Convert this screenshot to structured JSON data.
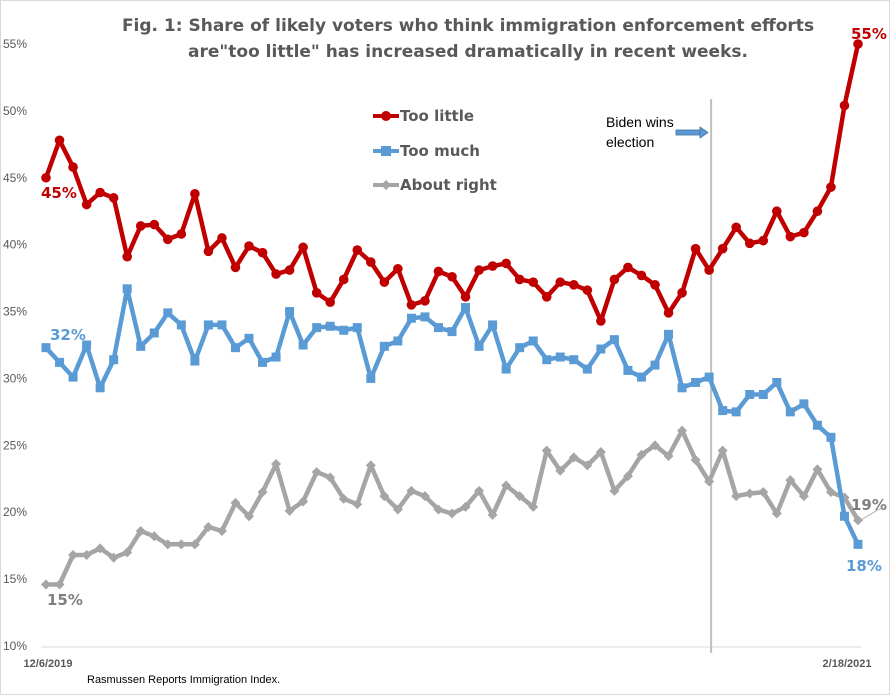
{
  "chart_data": {
    "type": "line",
    "title_lines": [
      "Fig. 1: Share of likely voters who think immigration enforcement efforts",
      "are\"too little\" has increased dramatically in recent weeks."
    ],
    "xlabel": "",
    "ylabel": "",
    "ylim": [
      10,
      55
    ],
    "yticks": [
      "10%",
      "15%",
      "20%",
      "25%",
      "30%",
      "35%",
      "40%",
      "45%",
      "50%",
      "55%"
    ],
    "ytick_values": [
      10,
      15,
      20,
      25,
      30,
      35,
      40,
      45,
      50,
      55
    ],
    "x_start_label": "12/6/2019",
    "x_end_label": "2/18/2021",
    "grid": false,
    "legend_placement": "top-center",
    "series": [
      {
        "name": "Too little",
        "color": "#C00000",
        "marker": "circle",
        "start_label": "45%",
        "end_label": "55%",
        "values": [
          45.0,
          47.8,
          45.8,
          43.0,
          43.9,
          43.5,
          39.1,
          41.4,
          41.5,
          40.4,
          40.8,
          43.8,
          39.5,
          40.5,
          38.3,
          39.9,
          39.4,
          37.8,
          38.1,
          39.8,
          36.4,
          35.7,
          37.4,
          39.6,
          38.7,
          37.2,
          38.2,
          35.5,
          35.8,
          38.0,
          37.6,
          36.1,
          38.1,
          38.4,
          38.6,
          37.4,
          37.2,
          36.1,
          37.2,
          37.0,
          36.6,
          34.3,
          37.4,
          38.3,
          37.7,
          37.0,
          34.9,
          36.4,
          39.7,
          38.1,
          39.7,
          41.3,
          40.1,
          40.3,
          42.5,
          40.6,
          40.9,
          42.5,
          44.3,
          50.4,
          55.0
        ]
      },
      {
        "name": "Too much",
        "color": "#5B9BD5",
        "marker": "square",
        "start_label": "32%",
        "end_label": "18%",
        "values": [
          32.3,
          31.2,
          30.1,
          32.5,
          29.3,
          31.4,
          36.7,
          32.4,
          33.4,
          34.9,
          34.0,
          31.3,
          34.0,
          34.0,
          32.3,
          33.0,
          31.2,
          31.6,
          35.0,
          32.5,
          33.8,
          33.9,
          33.6,
          33.8,
          30.0,
          32.4,
          32.8,
          34.5,
          34.6,
          33.8,
          33.5,
          35.3,
          32.4,
          34.0,
          30.7,
          32.3,
          32.8,
          31.4,
          31.6,
          31.4,
          30.7,
          32.2,
          32.9,
          30.6,
          30.1,
          31.0,
          33.3,
          29.3,
          29.7,
          30.1,
          27.6,
          27.5,
          28.8,
          28.8,
          29.7,
          27.5,
          28.1,
          26.5,
          25.6,
          19.7,
          17.6
        ]
      },
      {
        "name": "About right",
        "color": "#A5A5A5",
        "marker": "diamond",
        "start_label": "15%",
        "end_label": "19%",
        "values": [
          14.6,
          14.6,
          16.8,
          16.8,
          17.3,
          16.6,
          17.0,
          18.6,
          18.2,
          17.6,
          17.6,
          17.6,
          18.9,
          18.6,
          20.7,
          19.7,
          21.5,
          23.6,
          20.1,
          20.8,
          23.0,
          22.6,
          21.0,
          20.6,
          23.5,
          21.2,
          20.2,
          21.6,
          21.2,
          20.2,
          19.9,
          20.4,
          21.6,
          19.8,
          22.0,
          21.2,
          20.4,
          24.6,
          23.1,
          24.1,
          23.5,
          24.5,
          21.6,
          22.7,
          24.3,
          25.0,
          24.2,
          26.1,
          23.9,
          22.3,
          24.6,
          21.2,
          21.4,
          21.5,
          19.9,
          22.4,
          21.2,
          23.2,
          21.5,
          21.1,
          19.4
        ]
      }
    ],
    "annotations": [
      {
        "text_lines": [
          "Biden wins",
          "election"
        ],
        "type": "vertical-line-with-arrow",
        "at_index": 49
      }
    ]
  },
  "source_note": "Rasmussen Reports Immigration Index.",
  "legend": {
    "items": [
      "Too little",
      "Too much",
      "About right"
    ]
  }
}
